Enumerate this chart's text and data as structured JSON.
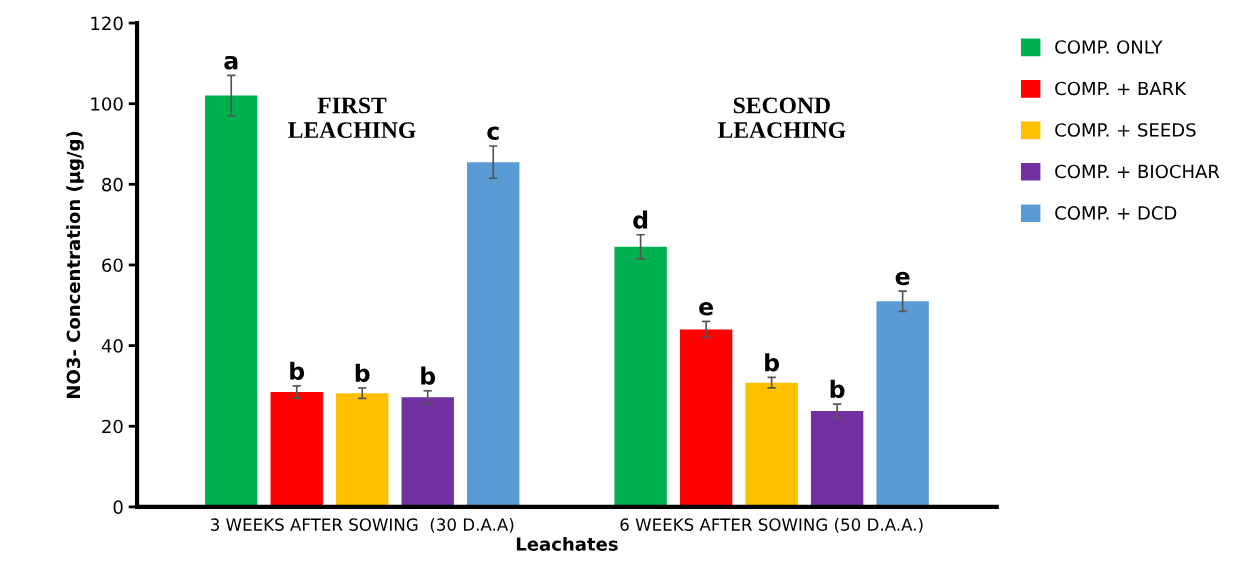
{
  "chart_data": {
    "type": "bar",
    "xlabel": "Leachates",
    "ylabel": "NO3- Concentration (µg/g)",
    "categories": [
      "3 WEEKS AFTER SOWING  (30 D.A.A)",
      "6 WEEKS AFTER SOWING (50 D.A.A.)"
    ],
    "series": [
      {
        "name": "COMP. ONLY",
        "color": "#00b050",
        "values": [
          102,
          64.5
        ],
        "errors": [
          5,
          3
        ],
        "value_labels": [
          "a",
          "d"
        ]
      },
      {
        "name": "COMP. + BARK",
        "color": "#ff0000",
        "values": [
          28.5,
          44
        ],
        "errors": [
          1.5,
          2
        ],
        "value_labels": [
          "b",
          "e"
        ]
      },
      {
        "name": "COMP. + SEEDS",
        "color": "#ffc000",
        "values": [
          28.2,
          30.8
        ],
        "errors": [
          1.3,
          1.3
        ],
        "value_labels": [
          "b",
          "b"
        ]
      },
      {
        "name": "COMP. + BIOCHAR",
        "color": "#7030a0",
        "values": [
          27.2,
          23.8
        ],
        "errors": [
          1.6,
          1.7
        ],
        "value_labels": [
          "b",
          "b"
        ]
      },
      {
        "name": "COMP. + DCD",
        "color": "#5b9bd5",
        "values": [
          85.5,
          51
        ],
        "errors": [
          4,
          2.5
        ],
        "value_labels": [
          "c",
          "e"
        ]
      }
    ],
    "ylim": [
      0,
      120
    ],
    "yticks": [
      0,
      20,
      40,
      60,
      80,
      100,
      120
    ],
    "annotations": [
      "FIRST\nLEACHING",
      "SECOND\nLEACHING"
    ],
    "grid": false,
    "legend": "right"
  }
}
